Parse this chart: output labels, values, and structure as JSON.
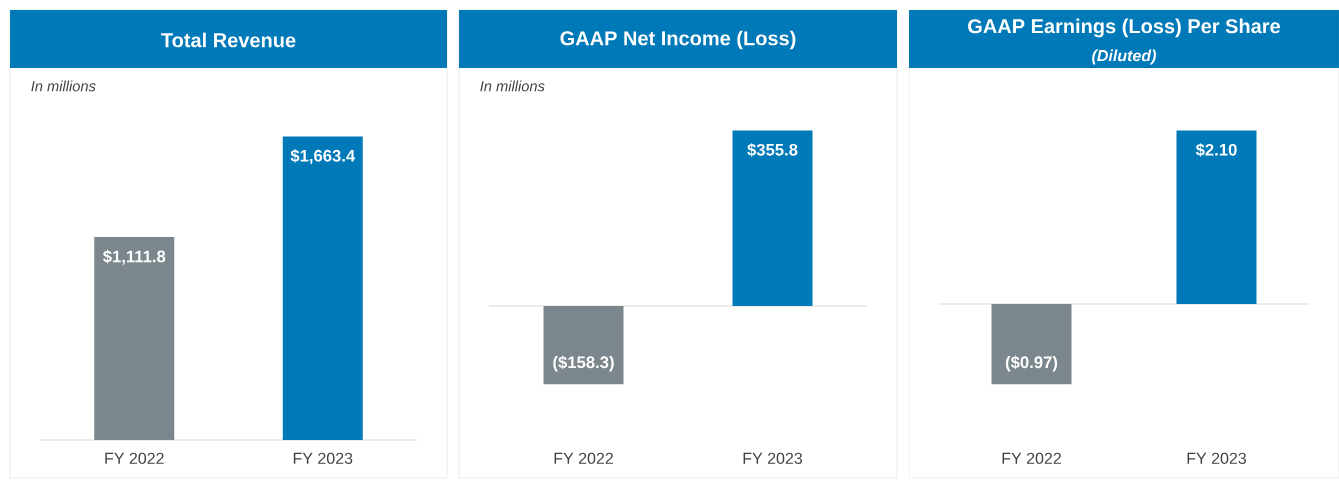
{
  "chart_data": [
    {
      "type": "bar",
      "title": "Total Revenue",
      "annotations": [
        "In millions"
      ],
      "categories": [
        "FY 2022",
        "FY 2023"
      ],
      "values": [
        1111.8,
        1663.4
      ],
      "value_labels": [
        "$1,111.8",
        "$1,663.4"
      ],
      "colors": [
        "#7b878c",
        "#0079b8"
      ]
    },
    {
      "type": "bar",
      "title": "GAAP Net Income (Loss)",
      "annotations": [
        "In millions"
      ],
      "categories": [
        "FY 2022",
        "FY 2023"
      ],
      "values": [
        -158.3,
        355.8
      ],
      "value_labels": [
        "($158.3)",
        "$355.8"
      ],
      "colors": [
        "#7b878c",
        "#0079b8"
      ]
    },
    {
      "type": "bar",
      "title": "GAAP Earnings (Loss) Per Share",
      "subtitle": "(Diluted)",
      "categories": [
        "FY 2022",
        "FY 2023"
      ],
      "values": [
        -0.97,
        2.1
      ],
      "value_labels": [
        "($0.97)",
        "$2.10"
      ],
      "colors": [
        "#7b878c",
        "#0079b8"
      ]
    }
  ]
}
